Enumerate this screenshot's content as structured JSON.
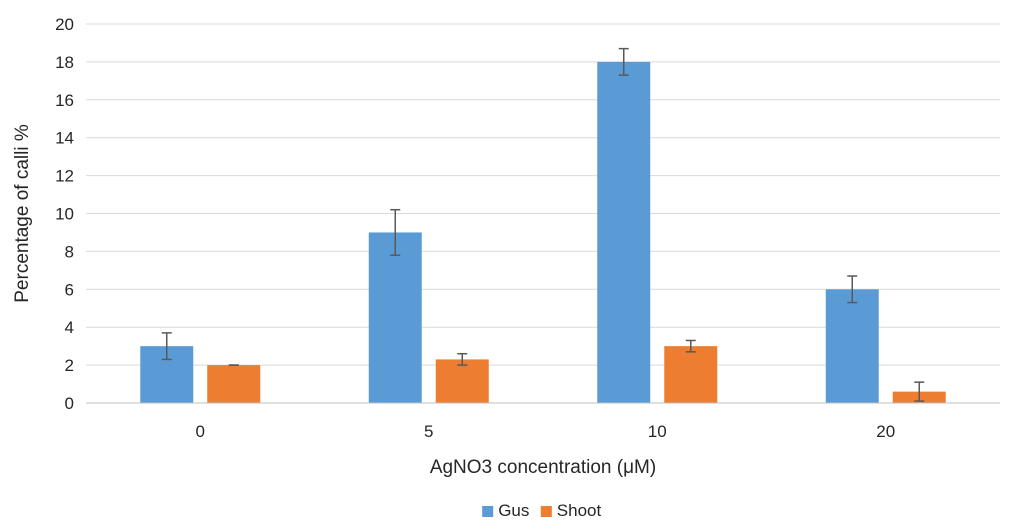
{
  "chart_data": {
    "type": "bar",
    "title": "",
    "xlabel": "AgNO3 concentration (μM)",
    "ylabel": "Percentage of calli %",
    "categories": [
      "0",
      "5",
      "10",
      "20"
    ],
    "ylim": [
      0,
      20
    ],
    "yticks": [
      "0",
      "2",
      "4",
      "6",
      "8",
      "10",
      "12",
      "14",
      "16",
      "18",
      "20"
    ],
    "grid": true,
    "legend_position": "bottom",
    "series": [
      {
        "name": "Gus",
        "color": "#5b9bd5",
        "values": [
          3,
          9,
          18,
          6
        ],
        "errors": [
          0.7,
          1.2,
          0.7,
          0.7
        ]
      },
      {
        "name": "Shoot",
        "color": "#ed7d31",
        "values": [
          2,
          2.3,
          3,
          0.6
        ],
        "errors": [
          0,
          0.3,
          0.3,
          0.5
        ]
      }
    ]
  }
}
